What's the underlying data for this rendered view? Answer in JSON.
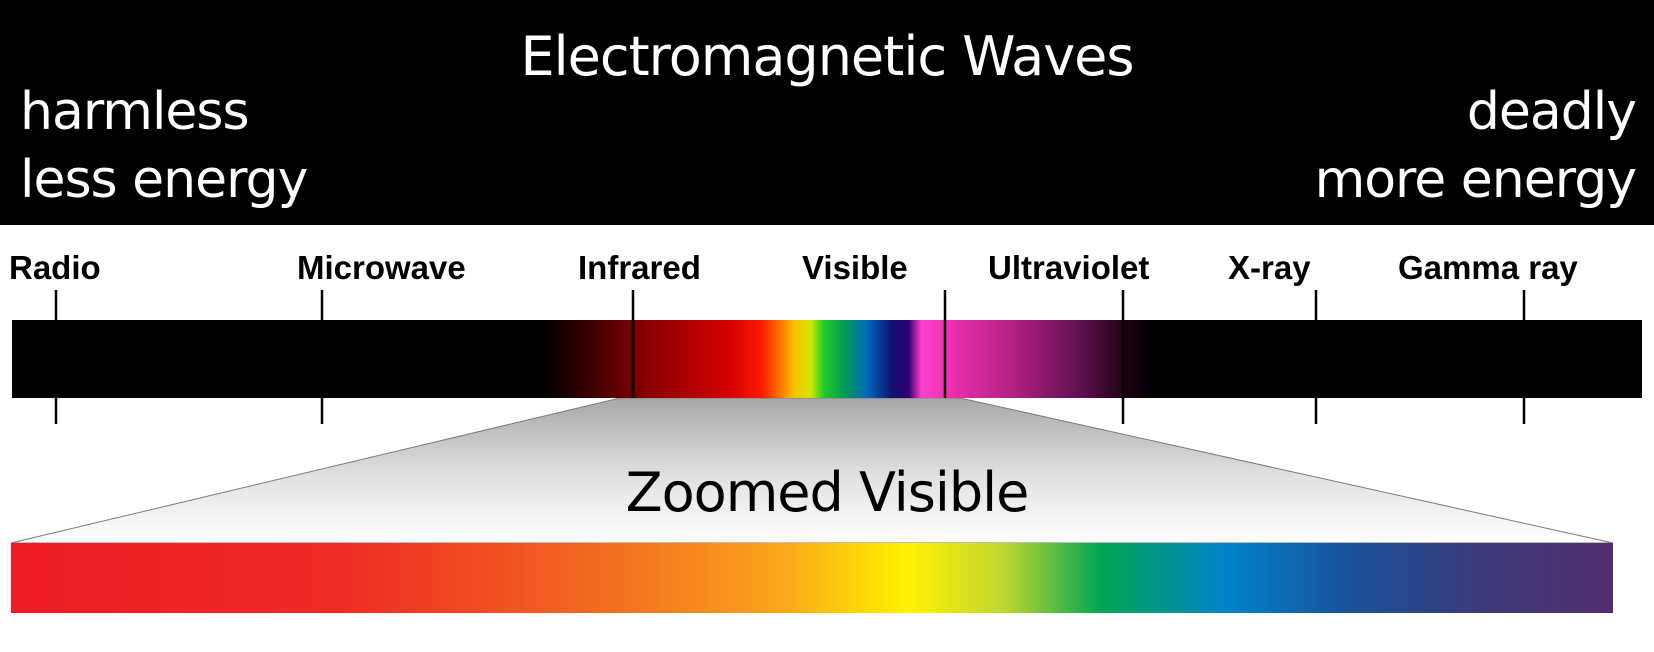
{
  "header": {
    "title": "Electromagnetic Waves",
    "left_line1": "harmless",
    "left_line2": "less energy",
    "right_line1": "deadly",
    "right_line2": "more energy"
  },
  "bands": [
    "Radio",
    "Microwave",
    "Infrared",
    "Visible",
    "Ultraviolet",
    "X-ray",
    "Gamma ray"
  ],
  "zoom": {
    "label": "Zoomed Visible"
  },
  "colors": {
    "background": "#000000",
    "text_on_dark": "#ffffff",
    "visible_red": "#ee1c25",
    "visible_orange": "#f47a20",
    "visible_yellow": "#fff200",
    "visible_green": "#00a651",
    "visible_blue": "#0081c9",
    "visible_violet": "#532e6e",
    "ultraviolet_pink": "#ff40cc"
  }
}
